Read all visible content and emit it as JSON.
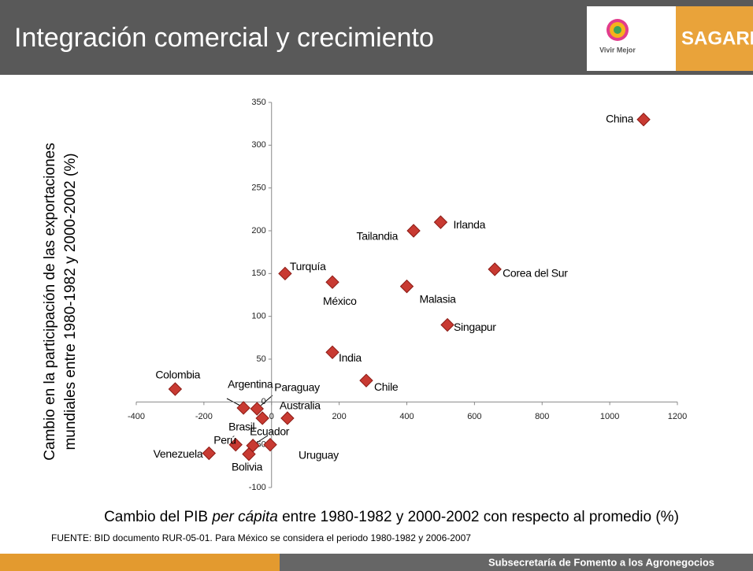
{
  "header": {
    "title": "Integración comercial y crecimiento",
    "logo_text": "Vivir Mejor",
    "brand": "SAGARPA"
  },
  "footer": {
    "source": "FUENTE: BID documento RUR-05-01. Para México se considera el periodo 1980-1982 y 2006-2007",
    "bar_text": "Subsecretaría de Fomento a los Agronegocios"
  },
  "chart_data": {
    "type": "scatter",
    "ylabel": [
      "Cambio en la participación de las exportaciones",
      "mundiales entre 1980-1982 y 2000-2002 (%)"
    ],
    "xlabel": [
      "Cambio del PIB ",
      "per cápita",
      " entre 1980-1982 y 2000-2002 con respecto al promedio (%)"
    ],
    "labels": [
      "China",
      "Irlanda",
      "Tailandia",
      "Corea del Sur",
      "Turquía",
      "México",
      "Malasia",
      "Singapur",
      "India",
      "Chile",
      "Colombia",
      "Argentina",
      "Paraguay",
      "Australia",
      "Brasil",
      "Ecuador",
      "Perú",
      "Venezuela",
      "Bolivia",
      "Uruguay"
    ],
    "x": [
      1100,
      500,
      420,
      660,
      40,
      180,
      400,
      520,
      180,
      280,
      -285,
      -83,
      -43,
      47,
      -27,
      -55,
      -106,
      -185,
      -67,
      -4
    ],
    "values": [
      330,
      210,
      200,
      155,
      150,
      140,
      135,
      90,
      58,
      25,
      15,
      -7,
      -8,
      -19,
      -19,
      -51,
      -50,
      -60,
      -61,
      -50
    ],
    "color": "#c83a32",
    "xlim": [
      -400,
      1200
    ],
    "xticks": [
      -400,
      -200,
      0,
      200,
      400,
      600,
      800,
      1000,
      1200
    ],
    "ylim": [
      -100,
      350
    ],
    "yticks": [
      -100,
      -50,
      0,
      50,
      100,
      150,
      200,
      250,
      300,
      350
    ]
  }
}
